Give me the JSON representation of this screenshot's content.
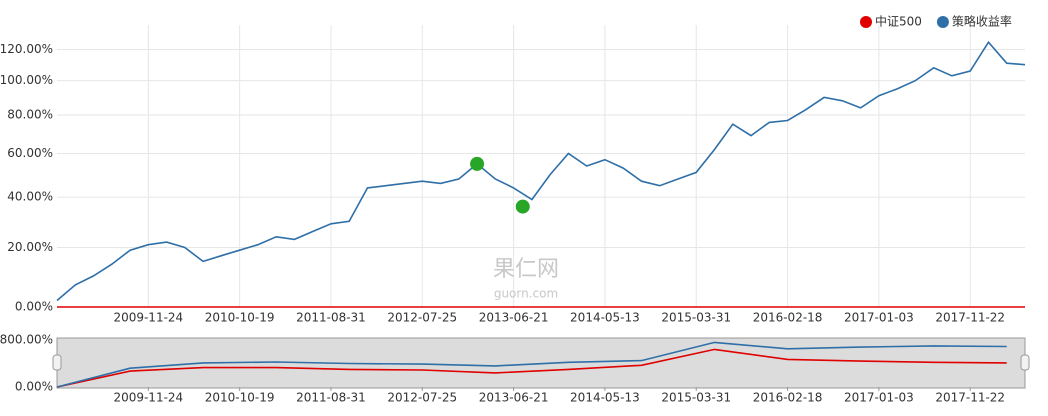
{
  "chart_data": [
    {
      "type": "line",
      "legend": "top-right",
      "log_scale": true,
      "grid": true,
      "xlim": [
        0,
        53
      ],
      "xticks": [
        {
          "value": 5,
          "label": "2009-11-24"
        },
        {
          "value": 10,
          "label": "2010-10-19"
        },
        {
          "value": 15,
          "label": "2011-08-31"
        },
        {
          "value": 20,
          "label": "2012-07-25"
        },
        {
          "value": 25,
          "label": "2013-06-21"
        },
        {
          "value": 30,
          "label": "2014-05-13"
        },
        {
          "value": 35,
          "label": "2015-03-31"
        },
        {
          "value": 40,
          "label": "2016-02-18"
        },
        {
          "value": 45,
          "label": "2017-01-03"
        },
        {
          "value": 50,
          "label": "2017-11-22"
        }
      ],
      "ylim": [
        0,
        130
      ],
      "yticks": [
        {
          "value": 0,
          "label": "0.00%"
        },
        {
          "value": 20,
          "label": "20.00%"
        },
        {
          "value": 40,
          "label": "40.00%"
        },
        {
          "value": 60,
          "label": "60.00%"
        },
        {
          "value": 80,
          "label": "80.00%"
        },
        {
          "value": 100,
          "label": "100.00%"
        },
        {
          "value": 120,
          "label": "120.00%"
        }
      ],
      "series": [
        {
          "name": "中证500",
          "color": "#e00000",
          "values": [
            0,
            0,
            0,
            0,
            0,
            0,
            0,
            0,
            0,
            0,
            0,
            0,
            0,
            0,
            0,
            0,
            0,
            0,
            0,
            0,
            0,
            0,
            0,
            0,
            0,
            0,
            0,
            0,
            0,
            0,
            0,
            0,
            0,
            0,
            0,
            0,
            0,
            0,
            0,
            0,
            0,
            0,
            0,
            0,
            0,
            0,
            0,
            0,
            0,
            0,
            0,
            0,
            0,
            0
          ]
        },
        {
          "name": "策略收益率",
          "color": "#2f6fa8",
          "values": [
            2,
            7,
            10,
            14,
            19,
            21,
            22,
            20,
            15,
            17,
            19,
            21,
            24,
            23,
            26,
            29,
            30,
            44,
            45,
            46,
            47,
            46,
            48,
            55,
            48,
            44,
            39,
            50,
            60,
            54,
            57,
            53,
            47,
            45,
            48,
            51,
            62,
            75,
            69,
            76,
            77,
            83,
            90,
            88,
            84,
            91,
            95,
            100,
            108,
            103,
            106,
            125,
            111,
            110
          ]
        }
      ],
      "markers": {
        "color": "#27a627",
        "x": [
          23,
          25.5
        ],
        "values": [
          55,
          36
        ]
      },
      "watermark": [
        "果仁网",
        "guorn.com"
      ]
    },
    {
      "type": "line",
      "xlim": [
        0,
        53
      ],
      "xticks": [
        {
          "value": 5,
          "label": "2009-11-24"
        },
        {
          "value": 10,
          "label": "2010-10-19"
        },
        {
          "value": 15,
          "label": "2011-08-31"
        },
        {
          "value": 20,
          "label": "2012-07-25"
        },
        {
          "value": 25,
          "label": "2013-06-21"
        },
        {
          "value": 30,
          "label": "2014-05-13"
        },
        {
          "value": 35,
          "label": "2015-03-31"
        },
        {
          "value": 40,
          "label": "2016-02-18"
        },
        {
          "value": 45,
          "label": "2017-01-03"
        },
        {
          "value": 50,
          "label": "2017-11-22"
        }
      ],
      "ylim": [
        0,
        800
      ],
      "yticks": [
        {
          "value": 0,
          "label": "0.00%"
        },
        {
          "value": 800,
          "label": "800.00%"
        }
      ],
      "x": [
        0,
        4,
        8,
        12,
        16,
        20,
        24,
        28,
        32,
        36,
        40,
        44,
        48,
        52
      ],
      "series": [
        {
          "color": "#e00000",
          "values": [
            0,
            270,
            330,
            330,
            300,
            290,
            240,
            300,
            370,
            640,
            470,
            440,
            420,
            410
          ]
        },
        {
          "color": "#2f6fa8",
          "values": [
            0,
            320,
            410,
            425,
            400,
            390,
            360,
            420,
            450,
            760,
            650,
            680,
            700,
            690
          ]
        }
      ]
    }
  ]
}
